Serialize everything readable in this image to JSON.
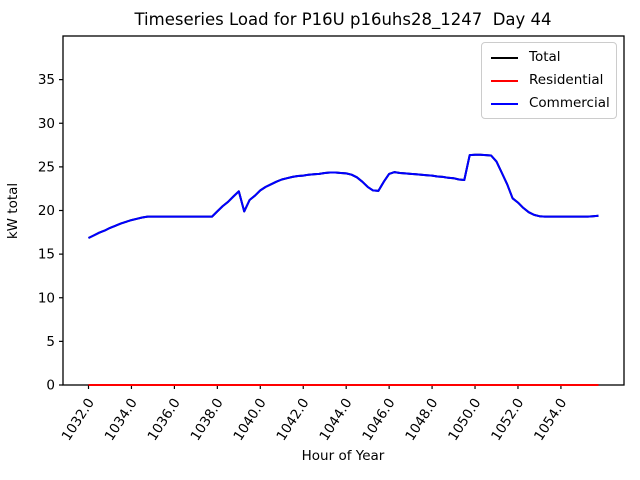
{
  "chart_data": {
    "type": "line",
    "title": "Timeseries Load for P16U p16uhs28_1247  Day 44",
    "xlabel": "Hour of Year",
    "ylabel": "kW total",
    "grid": false,
    "legend_position": "upper right",
    "xlim": [
      1030.8125,
      1056.9375
    ],
    "ylim": [
      0,
      40
    ],
    "xtick_values": [
      1032,
      1034,
      1036,
      1038,
      1040,
      1042,
      1044,
      1046,
      1048,
      1050,
      1052,
      1054
    ],
    "xtick_labels": [
      "1032.0",
      "1034.0",
      "1036.0",
      "1038.0",
      "1040.0",
      "1042.0",
      "1044.0",
      "1046.0",
      "1048.0",
      "1050.0",
      "1052.0",
      "1054.0"
    ],
    "ytick_values": [
      0,
      5,
      10,
      15,
      20,
      25,
      30,
      35
    ],
    "ytick_labels": [
      "0",
      "5",
      "10",
      "15",
      "20",
      "25",
      "30",
      "35"
    ],
    "x": [
      1032.0,
      1032.25,
      1032.5,
      1032.75,
      1033.0,
      1033.25,
      1033.5,
      1033.75,
      1034.0,
      1034.25,
      1034.5,
      1034.75,
      1035.0,
      1035.25,
      1035.5,
      1035.75,
      1036.0,
      1036.25,
      1036.5,
      1036.75,
      1037.0,
      1037.25,
      1037.5,
      1037.75,
      1038.0,
      1038.25,
      1038.5,
      1038.75,
      1039.0,
      1039.25,
      1039.5,
      1039.75,
      1040.0,
      1040.25,
      1040.5,
      1040.75,
      1041.0,
      1041.25,
      1041.5,
      1041.75,
      1042.0,
      1042.25,
      1042.5,
      1042.75,
      1043.0,
      1043.25,
      1043.5,
      1043.75,
      1044.0,
      1044.25,
      1044.5,
      1044.75,
      1045.0,
      1045.25,
      1045.5,
      1045.75,
      1046.0,
      1046.25,
      1046.5,
      1046.75,
      1047.0,
      1047.25,
      1047.5,
      1047.75,
      1048.0,
      1048.25,
      1048.5,
      1048.75,
      1049.0,
      1049.25,
      1049.5,
      1049.75,
      1050.0,
      1050.25,
      1050.5,
      1050.75,
      1051.0,
      1051.25,
      1051.5,
      1051.75,
      1052.0,
      1052.25,
      1052.5,
      1052.75,
      1053.0,
      1053.25,
      1053.5,
      1053.75,
      1054.0,
      1054.25,
      1054.5,
      1054.75,
      1055.0,
      1055.25,
      1055.5,
      1055.75
    ],
    "series": [
      {
        "name": "Total",
        "color": "#000000",
        "values": [
          16.85,
          17.15,
          17.45,
          17.7,
          18.0,
          18.25,
          18.5,
          18.7,
          18.9,
          19.05,
          19.2,
          19.3,
          19.3,
          19.3,
          19.3,
          19.3,
          19.3,
          19.3,
          19.3,
          19.3,
          19.3,
          19.3,
          19.3,
          19.3,
          19.9,
          20.5,
          21.0,
          21.6,
          22.2,
          19.9,
          21.2,
          21.7,
          22.3,
          22.7,
          23.0,
          23.3,
          23.55,
          23.7,
          23.85,
          23.95,
          24.0,
          24.1,
          24.15,
          24.2,
          24.3,
          24.35,
          24.35,
          24.3,
          24.25,
          24.1,
          23.8,
          23.3,
          22.7,
          22.3,
          22.25,
          23.3,
          24.2,
          24.4,
          24.3,
          24.25,
          24.2,
          24.15,
          24.1,
          24.05,
          24.0,
          23.9,
          23.85,
          23.75,
          23.7,
          23.55,
          23.5,
          26.35,
          26.4,
          26.4,
          26.35,
          26.3,
          25.6,
          24.3,
          23.0,
          21.4,
          20.9,
          20.3,
          19.8,
          19.5,
          19.35,
          19.3,
          19.3,
          19.3,
          19.3,
          19.3,
          19.3,
          19.3,
          19.3,
          19.3,
          19.35,
          19.4
        ]
      },
      {
        "name": "Residential",
        "color": "#ff0000",
        "values": [
          0,
          0,
          0,
          0,
          0,
          0,
          0,
          0,
          0,
          0,
          0,
          0,
          0,
          0,
          0,
          0,
          0,
          0,
          0,
          0,
          0,
          0,
          0,
          0,
          0,
          0,
          0,
          0,
          0,
          0,
          0,
          0,
          0,
          0,
          0,
          0,
          0,
          0,
          0,
          0,
          0,
          0,
          0,
          0,
          0,
          0,
          0,
          0,
          0,
          0,
          0,
          0,
          0,
          0,
          0,
          0,
          0,
          0,
          0,
          0,
          0,
          0,
          0,
          0,
          0,
          0,
          0,
          0,
          0,
          0,
          0,
          0,
          0,
          0,
          0,
          0,
          0,
          0,
          0,
          0,
          0,
          0,
          0,
          0,
          0,
          0,
          0,
          0,
          0,
          0,
          0,
          0,
          0,
          0,
          0,
          0
        ]
      },
      {
        "name": "Commercial",
        "color": "#0000ff",
        "values": [
          16.85,
          17.15,
          17.45,
          17.7,
          18.0,
          18.25,
          18.5,
          18.7,
          18.9,
          19.05,
          19.2,
          19.3,
          19.3,
          19.3,
          19.3,
          19.3,
          19.3,
          19.3,
          19.3,
          19.3,
          19.3,
          19.3,
          19.3,
          19.3,
          19.9,
          20.5,
          21.0,
          21.6,
          22.2,
          19.9,
          21.2,
          21.7,
          22.3,
          22.7,
          23.0,
          23.3,
          23.55,
          23.7,
          23.85,
          23.95,
          24.0,
          24.1,
          24.15,
          24.2,
          24.3,
          24.35,
          24.35,
          24.3,
          24.25,
          24.1,
          23.8,
          23.3,
          22.7,
          22.3,
          22.25,
          23.3,
          24.2,
          24.4,
          24.3,
          24.25,
          24.2,
          24.15,
          24.1,
          24.05,
          24.0,
          23.9,
          23.85,
          23.75,
          23.7,
          23.55,
          23.5,
          26.35,
          26.4,
          26.4,
          26.35,
          26.3,
          25.6,
          24.3,
          23.0,
          21.4,
          20.9,
          20.3,
          19.8,
          19.5,
          19.35,
          19.3,
          19.3,
          19.3,
          19.3,
          19.3,
          19.3,
          19.3,
          19.3,
          19.3,
          19.35,
          19.4
        ]
      }
    ]
  }
}
